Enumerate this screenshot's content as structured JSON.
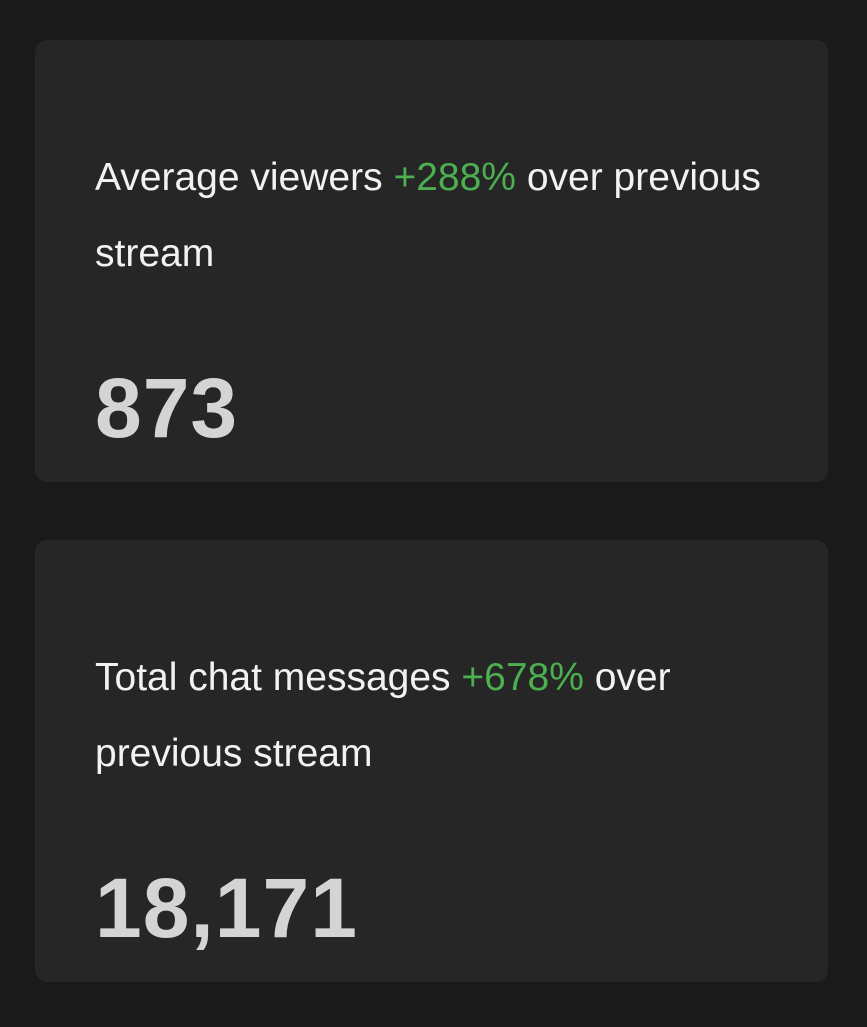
{
  "cards": [
    {
      "label": "Average viewers",
      "change": "+288%",
      "suffix": "over previous stream",
      "value": "873"
    },
    {
      "label": "Total chat messages",
      "change": "+678%",
      "suffix": "over previous stream",
      "value": "18,171"
    }
  ]
}
